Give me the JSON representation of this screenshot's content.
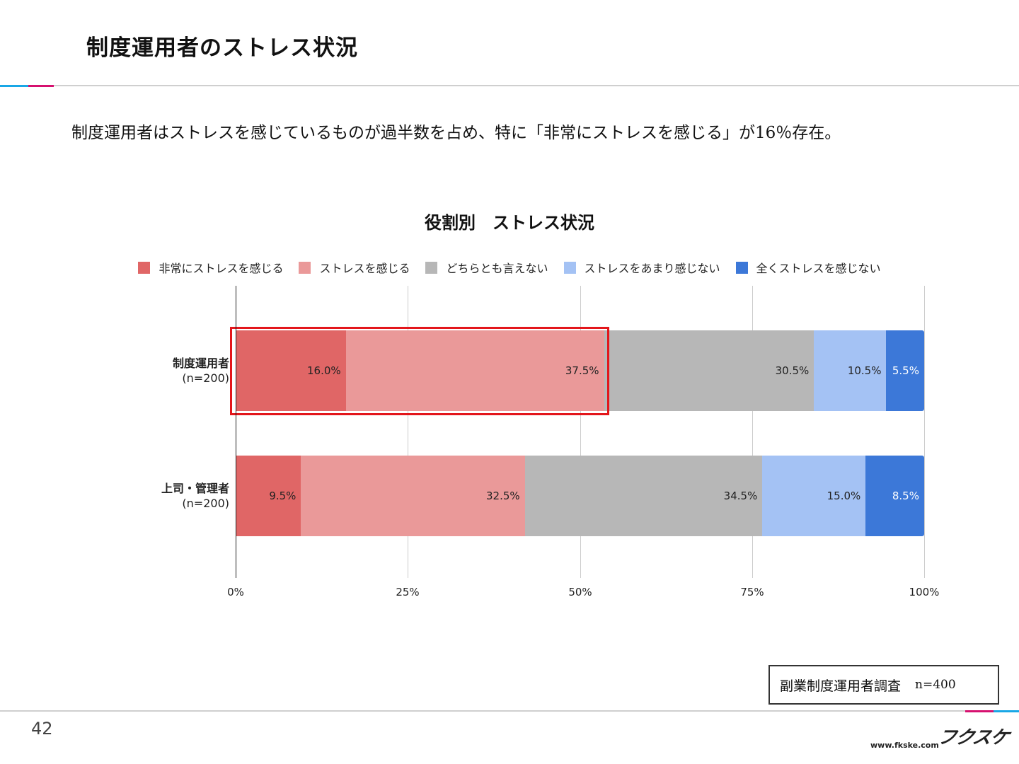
{
  "slide": {
    "title": "制度運用者のストレス状況",
    "summary": "制度運用者はストレスを感じているものが過半数を占め、特に「非常にストレスを感じる」が16％存在。",
    "page_number": "42",
    "source_label": "副業制度運用者調査",
    "source_n": "n=400",
    "logo_text": "フクスケ",
    "url": "www.fkske.com",
    "accent_pink": "#d6106f",
    "accent_blue": "#19a7e6",
    "highlight_color": "#e3161b"
  },
  "chart_data": {
    "type": "bar",
    "orientation": "horizontal",
    "stacked": "percent",
    "title": "役割別　ストレス状況",
    "categories": [
      "制度運用者",
      "上司・管理者"
    ],
    "category_notes": [
      "(n=200)",
      "(n=200)"
    ],
    "series": [
      {
        "name": "非常にストレスを感じる",
        "values": [
          16.0,
          9.5
        ],
        "color": "#e06666",
        "label_color": "#222222"
      },
      {
        "name": "ストレスを感じる",
        "values": [
          37.5,
          32.5
        ],
        "color": "#ea9999",
        "label_color": "#222222"
      },
      {
        "name": "どちらとも言えない",
        "values": [
          30.5,
          34.5
        ],
        "color": "#b7b7b7",
        "label_color": "#222222"
      },
      {
        "name": "ストレスをあまり感じない",
        "values": [
          10.5,
          15.0
        ],
        "color": "#a4c2f4",
        "label_color": "#222222"
      },
      {
        "name": "全くストレスを感じない",
        "values": [
          5.5,
          8.5
        ],
        "color": "#3c78d8",
        "label_color": "#ffffff"
      }
    ],
    "data_labels": [
      [
        "16.0%",
        "37.5%",
        "30.5%",
        "10.5%",
        "5.5%"
      ],
      [
        "9.5%",
        "32.5%",
        "34.5%",
        "15.0%",
        "8.5%"
      ]
    ],
    "xlim": [
      0,
      100
    ],
    "xticks": [
      "0%",
      "25%",
      "50%",
      "75%",
      "100%"
    ],
    "grid": true,
    "legend_position": "top",
    "highlight": {
      "category": "制度運用者",
      "series": [
        "非常にストレスを感じる",
        "ストレスを感じる"
      ]
    }
  }
}
